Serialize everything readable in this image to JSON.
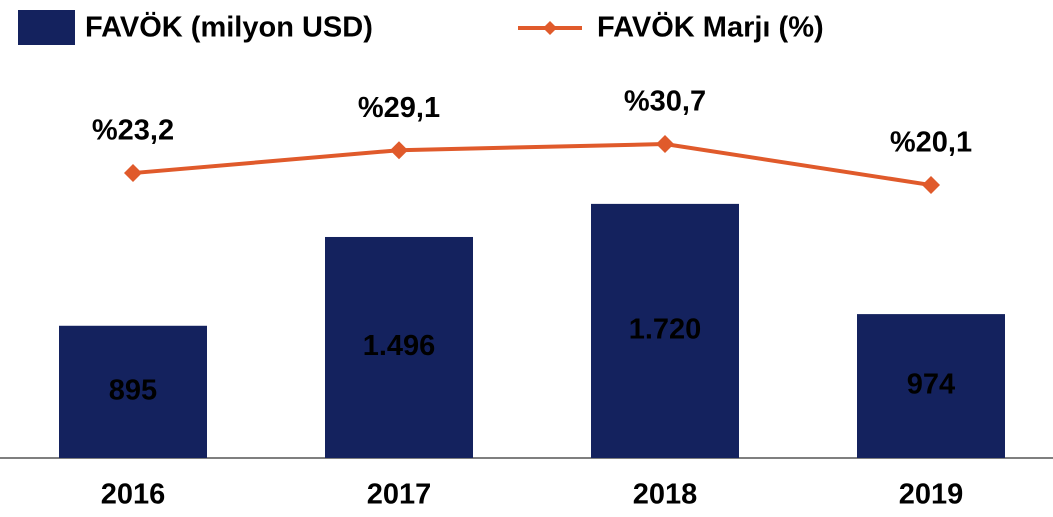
{
  "chart_data": {
    "type": "bar+line",
    "categories": [
      "2016",
      "2017",
      "2018",
      "2019"
    ],
    "series": [
      {
        "name": "FAVÖK (milyon USD)",
        "type": "bar",
        "color": "#14225e",
        "values": [
          895,
          1496,
          1720,
          974
        ],
        "value_labels": [
          "895",
          "1.496",
          "1.720",
          "974"
        ]
      },
      {
        "name": "FAVÖK Marjı (%)",
        "type": "line",
        "axis": "y2",
        "color": "#e05a2b",
        "values": [
          23.2,
          29.1,
          30.7,
          20.1
        ],
        "value_labels": [
          "%23,2",
          "%29,1",
          "%30,7",
          "%20,1"
        ]
      }
    ],
    "ylim": [
      0,
      3100
    ],
    "y2lim": [
      -50.4,
      67.9
    ],
    "legend": "top-left"
  }
}
